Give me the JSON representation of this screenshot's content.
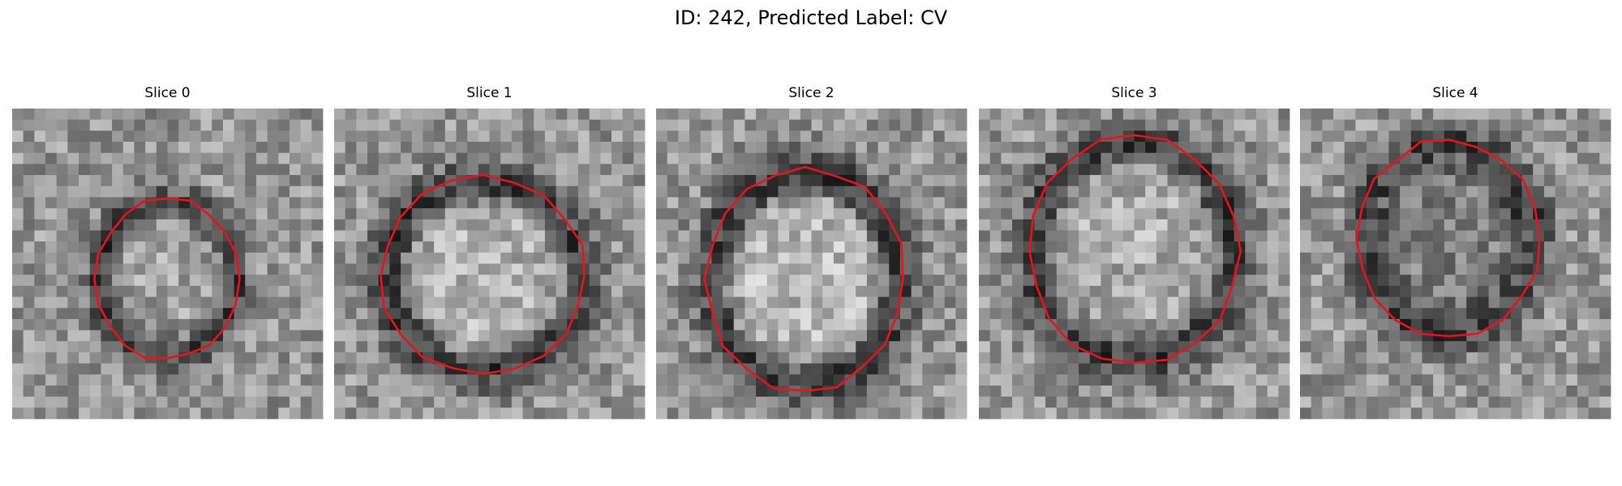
{
  "header": {
    "title": "ID: 242, Predicted Label: CV"
  },
  "panels": [
    {
      "label": "Slice 0"
    },
    {
      "label": "Slice 1"
    },
    {
      "label": "Slice 2"
    },
    {
      "label": "Slice 3"
    },
    {
      "label": "Slice 4"
    }
  ]
}
